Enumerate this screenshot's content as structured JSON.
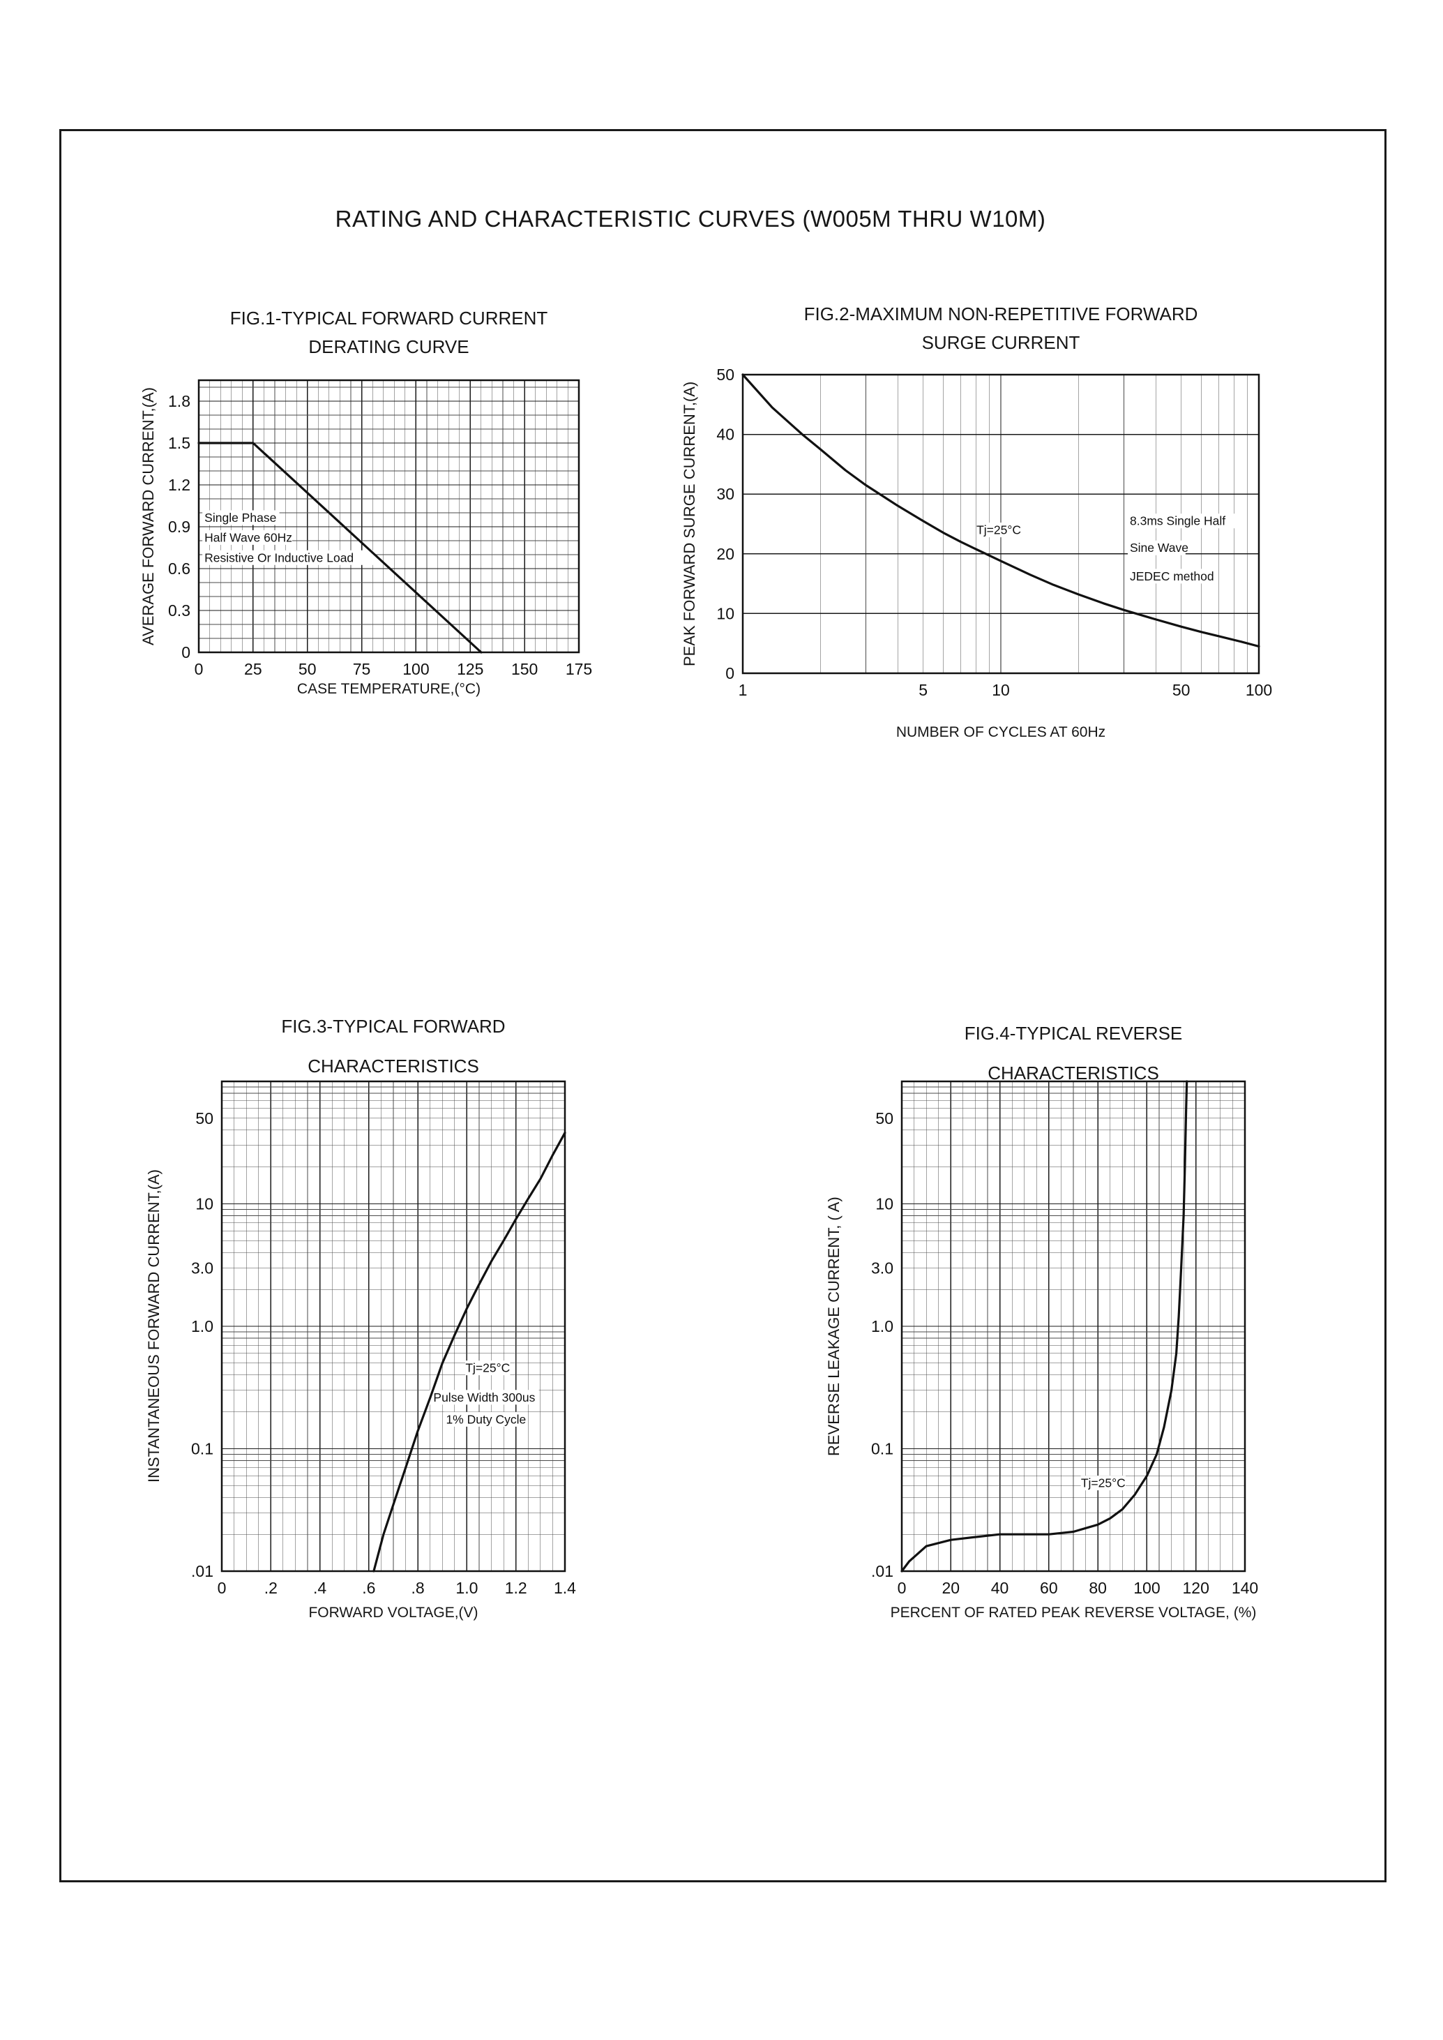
{
  "page": {
    "title": "RATING AND CHARACTERISTIC CURVES (W005M THRU W10M)"
  },
  "chart_data": [
    {
      "id": "fig1",
      "type": "line",
      "title": "FIG.1-TYPICAL FORWARD CURRENT",
      "subtitle": "DERATING CURVE",
      "xlabel": "CASE TEMPERATURE,(°C)",
      "ylabel": "AVERAGE FORWARD CURRENT,(A)",
      "x_scale": "linear",
      "y_scale": "linear",
      "xlim": [
        0,
        175
      ],
      "ylim": [
        0,
        1.95
      ],
      "x_minor": 5,
      "y_minor": 0.1,
      "grid": true,
      "legend": "none",
      "x_ticks": {
        "values": [
          0,
          25,
          50,
          75,
          100,
          125,
          150,
          175
        ],
        "labels": [
          "0",
          "25",
          "50",
          "75",
          "100",
          "125",
          "150",
          "175"
        ]
      },
      "y_ticks": {
        "values": [
          0,
          0.3,
          0.6,
          0.9,
          1.2,
          1.5,
          1.8
        ],
        "labels": [
          "0",
          "0.3",
          "0.6",
          "0.9",
          "1.2",
          "1.5",
          "1.8"
        ]
      },
      "series": [
        {
          "name": "forward-current-derating",
          "points": [
            [
              0,
              1.5
            ],
            [
              25,
              1.5
            ],
            [
              130,
              0
            ]
          ]
        }
      ],
      "annotations": [
        {
          "text": "Single Phase",
          "fx": 0.015,
          "fy": 0.505,
          "anchor": "start"
        },
        {
          "text": "Half Wave 60Hz",
          "fx": 0.015,
          "fy": 0.578,
          "anchor": "start"
        },
        {
          "text": "Resistive Or Inductive Load",
          "fx": 0.015,
          "fy": 0.652,
          "anchor": "start"
        }
      ]
    },
    {
      "id": "fig2",
      "type": "line",
      "title": "FIG.2-MAXIMUM NON-REPETITIVE FORWARD",
      "subtitle": "SURGE CURRENT",
      "xlabel": "NUMBER OF CYCLES AT 60Hz",
      "ylabel": "PEAK FORWARD SURGE CURRENT,(A)",
      "x_scale": "log",
      "y_scale": "linear",
      "xlim": [
        1,
        100
      ],
      "ylim": [
        0,
        50
      ],
      "x_minor": 0,
      "y_minor": 10,
      "grid": true,
      "legend": "none",
      "x_ticks": {
        "values": [
          1,
          5,
          10,
          50,
          100
        ],
        "labels": [
          "1",
          "5",
          "10",
          "50",
          "100"
        ]
      },
      "y_ticks": {
        "values": [
          0,
          10,
          20,
          30,
          40,
          50
        ],
        "labels": [
          "0",
          "10",
          "20",
          "30",
          "40",
          "50"
        ]
      },
      "series": [
        {
          "name": "surge-current",
          "points": [
            [
              1,
              50
            ],
            [
              1.3,
              44.5
            ],
            [
              1.7,
              40
            ],
            [
              2,
              37.5
            ],
            [
              2.5,
              34
            ],
            [
              3,
              31.5
            ],
            [
              4,
              28
            ],
            [
              5,
              25.5
            ],
            [
              6,
              23.5
            ],
            [
              7,
              22
            ],
            [
              8,
              20.8
            ],
            [
              10,
              18.8
            ],
            [
              13,
              16.5
            ],
            [
              16,
              14.8
            ],
            [
              20,
              13.2
            ],
            [
              25,
              11.7
            ],
            [
              30,
              10.6
            ],
            [
              40,
              9
            ],
            [
              50,
              7.8
            ],
            [
              60,
              6.9
            ],
            [
              70,
              6.2
            ],
            [
              85,
              5.3
            ],
            [
              100,
              4.5
            ]
          ]
        }
      ],
      "annotations": [
        {
          "text": "Tj=25°C",
          "fx": 0.496,
          "fy": 0.52,
          "anchor": "middle"
        },
        {
          "text": "8.3ms Single Half",
          "fx": 0.75,
          "fy": 0.49,
          "anchor": "start"
        },
        {
          "text": "Sine Wave",
          "fx": 0.75,
          "fy": 0.58,
          "anchor": "start"
        },
        {
          "text": "JEDEC method",
          "fx": 0.75,
          "fy": 0.675,
          "anchor": "start"
        }
      ]
    },
    {
      "id": "fig3",
      "type": "line",
      "title": "FIG.3-TYPICAL FORWARD",
      "subtitle": "CHARACTERISTICS",
      "xlabel": "FORWARD VOLTAGE,(V)",
      "ylabel": "INSTANTANEOUS FORWARD CURRENT,(A)",
      "x_scale": "linear",
      "y_scale": "log",
      "xlim": [
        0,
        1.4
      ],
      "ylim": [
        0.01,
        100
      ],
      "x_minor": 0.05,
      "y_minor": 0,
      "grid": true,
      "legend": "none",
      "x_ticks": {
        "values": [
          0,
          0.2,
          0.4,
          0.6,
          0.8,
          1.0,
          1.2,
          1.4
        ],
        "labels": [
          "0",
          ".2",
          ".4",
          ".6",
          ".8",
          "1.0",
          "1.2",
          "1.4"
        ]
      },
      "y_ticks": {
        "values": [
          50,
          10,
          3,
          1,
          0.1,
          0.01
        ],
        "labels": [
          "50",
          "10",
          "3.0",
          "1.0",
          "0.1",
          ".01"
        ]
      },
      "series": [
        {
          "name": "forward-characteristics",
          "points": [
            [
              0.62,
              0.01
            ],
            [
              0.66,
              0.02
            ],
            [
              0.7,
              0.035
            ],
            [
              0.75,
              0.07
            ],
            [
              0.8,
              0.14
            ],
            [
              0.85,
              0.26
            ],
            [
              0.9,
              0.5
            ],
            [
              0.95,
              0.85
            ],
            [
              1.0,
              1.4
            ],
            [
              1.05,
              2.2
            ],
            [
              1.1,
              3.4
            ],
            [
              1.15,
              5
            ],
            [
              1.2,
              7.5
            ],
            [
              1.25,
              11
            ],
            [
              1.3,
              16
            ],
            [
              1.35,
              25
            ],
            [
              1.4,
              38
            ]
          ]
        }
      ],
      "annotations": [
        {
          "text": "Tj=25°C",
          "fx": 0.775,
          "fy": 0.585,
          "anchor": "middle"
        },
        {
          "text": "Pulse Width 300us",
          "fx": 0.765,
          "fy": 0.645,
          "anchor": "middle"
        },
        {
          "text": "1% Duty Cycle",
          "fx": 0.77,
          "fy": 0.69,
          "anchor": "middle"
        }
      ]
    },
    {
      "id": "fig4",
      "type": "line",
      "title": "FIG.4-TYPICAL REVERSE",
      "subtitle": "CHARACTERISTICS",
      "xlabel": "PERCENT OF RATED PEAK REVERSE VOLTAGE, (%)",
      "ylabel": "REVERSE LEAKAGE CURRENT, ( A)",
      "x_scale": "linear",
      "y_scale": "log",
      "xlim": [
        0,
        140
      ],
      "ylim": [
        0.01,
        100
      ],
      "x_minor": 5,
      "y_minor": 0,
      "grid": true,
      "legend": "none",
      "x_ticks": {
        "values": [
          0,
          20,
          40,
          60,
          80,
          100,
          120,
          140
        ],
        "labels": [
          "0",
          "20",
          "40",
          "60",
          "80",
          "100",
          "120",
          "140"
        ]
      },
      "y_ticks": {
        "values": [
          50,
          10,
          3,
          1,
          0.1,
          0.01
        ],
        "labels": [
          "50",
          "10",
          "3.0",
          "1.0",
          "0.1",
          ".01"
        ]
      },
      "series": [
        {
          "name": "reverse-leakage",
          "points": [
            [
              0,
              0.01
            ],
            [
              3,
              0.012
            ],
            [
              10,
              0.016
            ],
            [
              20,
              0.018
            ],
            [
              30,
              0.019
            ],
            [
              40,
              0.02
            ],
            [
              50,
              0.02
            ],
            [
              60,
              0.02
            ],
            [
              70,
              0.021
            ],
            [
              80,
              0.024
            ],
            [
              85,
              0.027
            ],
            [
              90,
              0.032
            ],
            [
              95,
              0.042
            ],
            [
              100,
              0.06
            ],
            [
              104,
              0.09
            ],
            [
              107,
              0.15
            ],
            [
              110,
              0.3
            ],
            [
              112,
              0.6
            ],
            [
              113,
              1.2
            ],
            [
              114,
              3
            ],
            [
              115,
              8
            ],
            [
              115.5,
              20
            ],
            [
              116,
              60
            ],
            [
              116.3,
              100
            ]
          ]
        }
      ],
      "annotations": [
        {
          "text": "Tj=25°C",
          "fx": 0.587,
          "fy": 0.82,
          "anchor": "middle"
        }
      ]
    }
  ]
}
